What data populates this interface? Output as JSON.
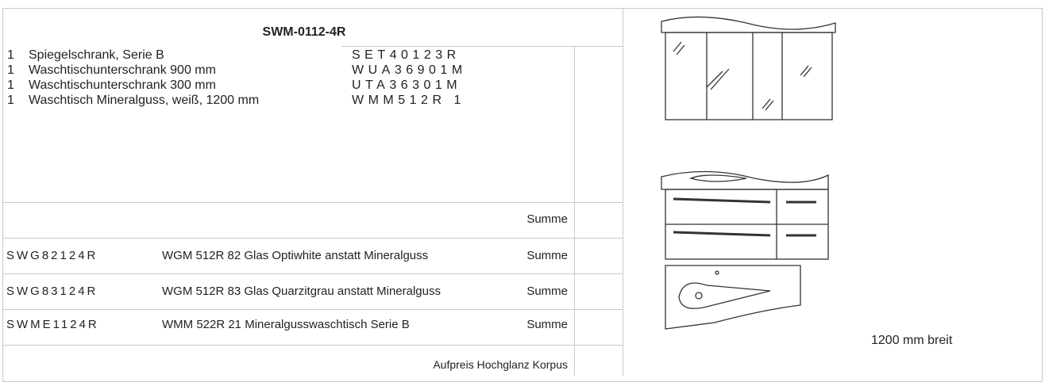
{
  "header": {
    "title": "SWM-0112-4R"
  },
  "items": [
    {
      "qty": "1",
      "description": "Spiegelschrank, Serie B",
      "code": "SET40123R"
    },
    {
      "qty": "1",
      "description": "Waschtischunterschrank 900 mm",
      "code": "WUA36901M"
    },
    {
      "qty": "1",
      "description": "Waschtischunterschrank 300 mm",
      "code": "UTA36301M"
    },
    {
      "qty": "1",
      "description": "Waschtisch Mineralguss, weiß, 1200 mm",
      "code": "WMM512R 1"
    }
  ],
  "summe": "Summe",
  "options": [
    {
      "code": "SWG82124R",
      "description": "WGM 512R 82 Glas Optiwhite anstatt Mineralguss",
      "label": "Summe"
    },
    {
      "code": "SWG83124R",
      "description": "WGM 512R 83 Glas Quarzitgrau anstatt Mineralguss",
      "label": "Summe"
    },
    {
      "code": "SWME1124R",
      "description": "WMM 522R 21 Mineralgusswaschtisch Serie B",
      "label": "Summe"
    }
  ],
  "footer_note": "Aufpreis Hochglanz Korpus",
  "image_caption": "1200 mm breit"
}
